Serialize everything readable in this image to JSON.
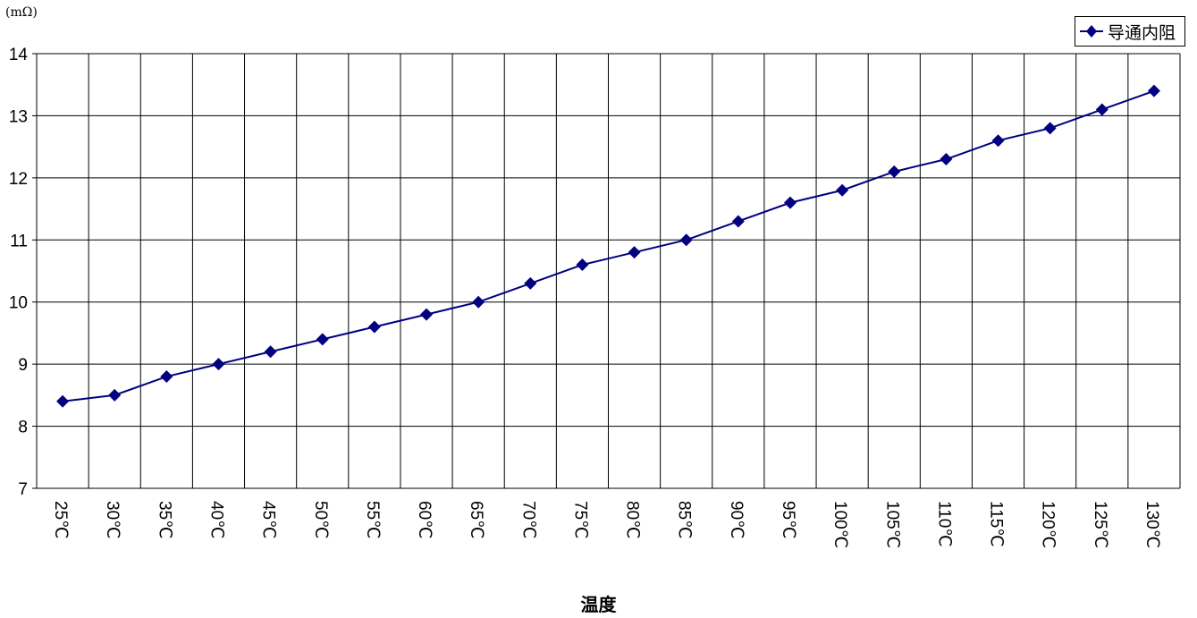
{
  "chart_data": {
    "type": "line",
    "title": "",
    "unit_label": "(mΩ)",
    "xlabel": "温度",
    "ylabel": "",
    "ylim": [
      7,
      14
    ],
    "yticks": [
      7,
      8,
      9,
      10,
      11,
      12,
      13,
      14
    ],
    "grid": true,
    "legend_position": "top-right",
    "categories": [
      "25℃",
      "30℃",
      "35℃",
      "40℃",
      "45℃",
      "50℃",
      "55℃",
      "60℃",
      "65℃",
      "70℃",
      "75℃",
      "80℃",
      "85℃",
      "90℃",
      "95℃",
      "100℃",
      "105℃",
      "110℃",
      "115℃",
      "120℃",
      "125℃",
      "130℃"
    ],
    "series": [
      {
        "name": "导通内阻",
        "color": "#000080",
        "marker": "diamond",
        "values": [
          8.4,
          8.5,
          8.8,
          9.0,
          9.2,
          9.4,
          9.6,
          9.8,
          10.0,
          10.3,
          10.6,
          10.8,
          11.0,
          11.3,
          11.6,
          11.8,
          12.1,
          12.3,
          12.6,
          12.8,
          13.1,
          13.4
        ]
      }
    ]
  }
}
